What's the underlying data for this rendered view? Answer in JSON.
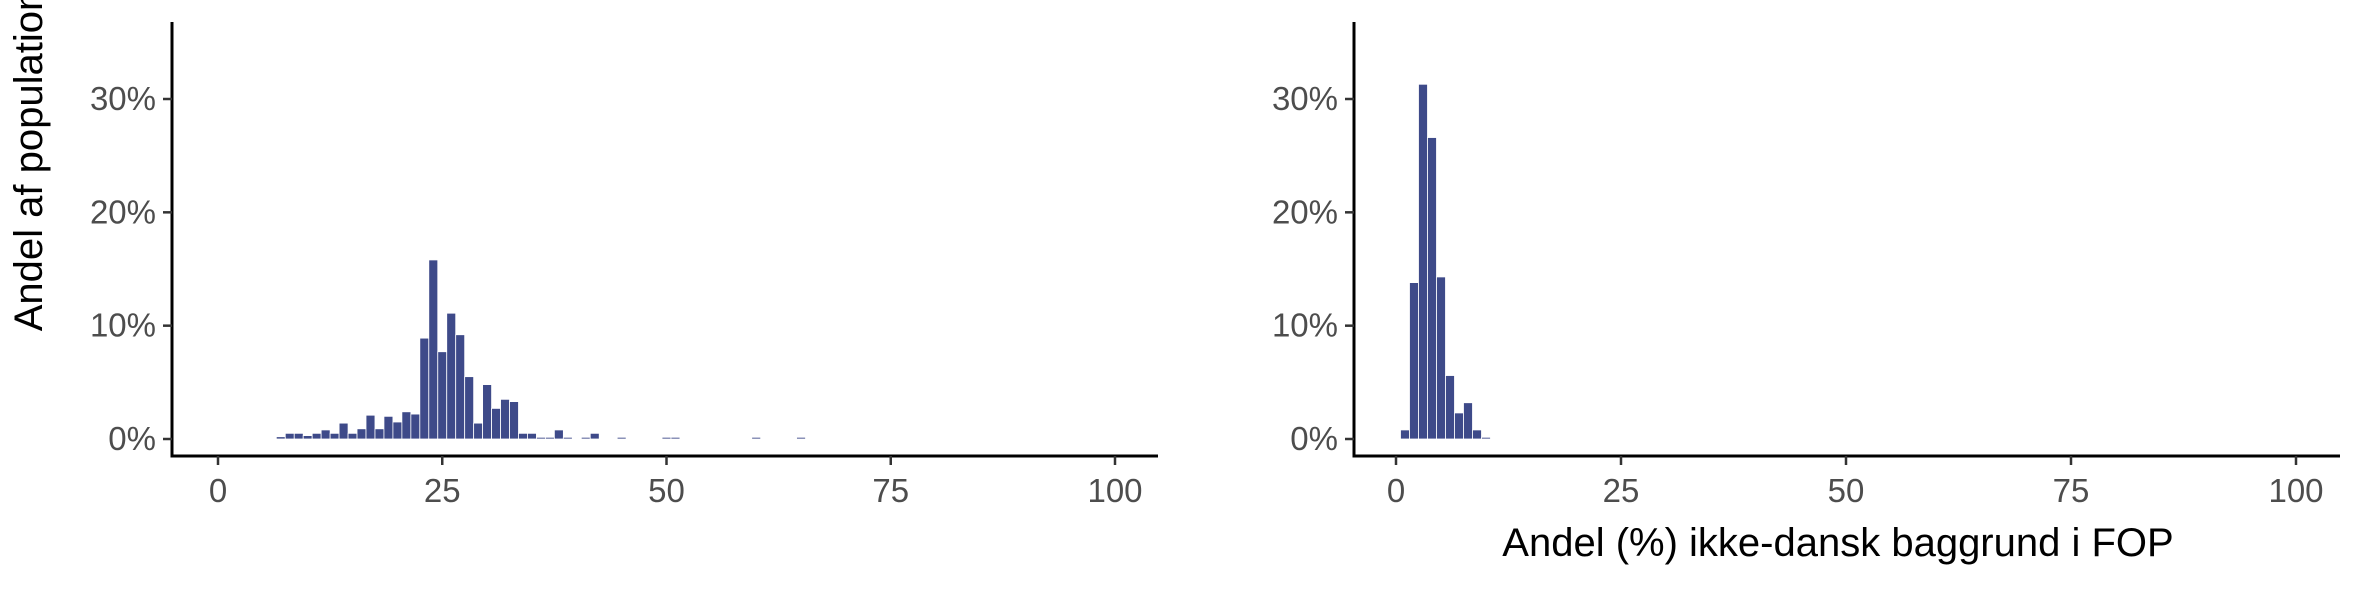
{
  "chart_data": [
    {
      "type": "bar",
      "histogram": true,
      "title": "",
      "xlabel": "",
      "ylabel": "Andel af population",
      "xlim": [
        0,
        100
      ],
      "ylim": [
        0,
        35
      ],
      "x_ticks": [
        0,
        25,
        50,
        75,
        100
      ],
      "x_tick_labels": [
        "0",
        "25",
        "50",
        "75",
        "100"
      ],
      "y_ticks": [
        0,
        10,
        20,
        30
      ],
      "y_tick_labels": [
        "0%",
        "10%",
        "20%",
        "30%"
      ],
      "bin_width": 1,
      "bar_color": "#3e4a89",
      "grid": false,
      "x": [
        7,
        8,
        9,
        10,
        11,
        12,
        13,
        14,
        15,
        16,
        17,
        18,
        19,
        20,
        21,
        22,
        23,
        24,
        25,
        26,
        27,
        28,
        29,
        30,
        31,
        32,
        33,
        34,
        35,
        36,
        37,
        38,
        39,
        41,
        42,
        45,
        50,
        51,
        60,
        65
      ],
      "values": [
        0.2,
        0.5,
        0.5,
        0.3,
        0.5,
        0.8,
        0.5,
        1.4,
        0.5,
        0.9,
        2.1,
        0.9,
        2.0,
        1.5,
        2.4,
        2.2,
        8.9,
        15.8,
        7.7,
        11.1,
        9.2,
        5.5,
        1.4,
        4.8,
        2.7,
        3.5,
        3.3,
        0.5,
        0.5,
        0.15,
        0.15,
        0.8,
        0.15,
        0.15,
        0.5,
        0.15,
        0.15,
        0.15,
        0.15,
        0.15
      ]
    },
    {
      "type": "bar",
      "histogram": true,
      "title": "",
      "xlabel": "Andel (%) ikke-dansk baggrund i FOP",
      "ylabel": "",
      "xlim": [
        0,
        100
      ],
      "ylim": [
        0,
        35
      ],
      "x_ticks": [
        0,
        25,
        50,
        75,
        100
      ],
      "x_tick_labels": [
        "0",
        "25",
        "50",
        "75",
        "100"
      ],
      "y_ticks": [
        0,
        10,
        20,
        30
      ],
      "y_tick_labels": [
        "0%",
        "10%",
        "20%",
        "30%"
      ],
      "bin_width": 1,
      "bar_color": "#3e4a89",
      "grid": false,
      "x": [
        1,
        2,
        3,
        4,
        5,
        6,
        7,
        8,
        9,
        10
      ],
      "values": [
        0.8,
        13.8,
        31.3,
        26.6,
        14.3,
        5.6,
        2.3,
        3.2,
        0.8,
        0.15
      ]
    }
  ]
}
